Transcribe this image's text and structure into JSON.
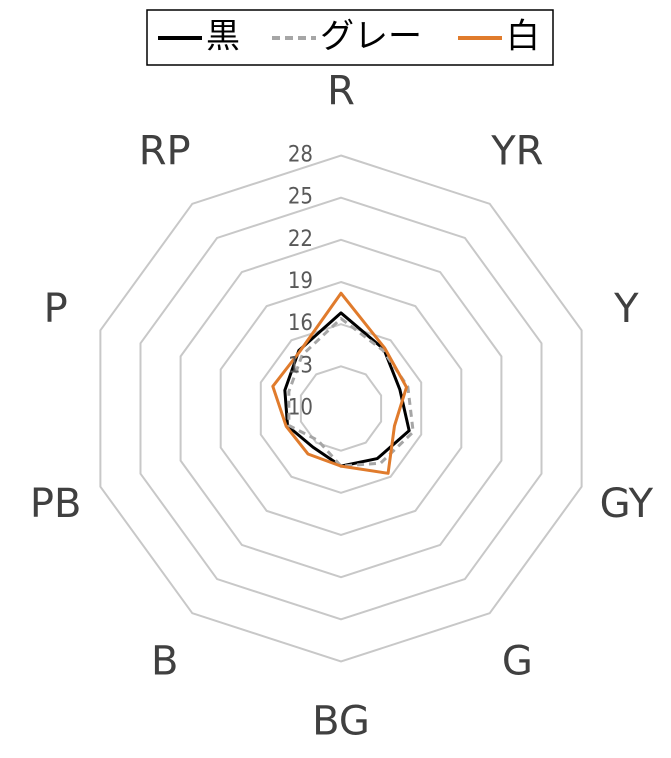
{
  "chart_data": {
    "type": "radar",
    "categories": [
      "R",
      "YR",
      "Y",
      "GY",
      "G",
      "BG",
      "B",
      "PB",
      "P",
      "RP"
    ],
    "series": [
      {
        "name": "黒",
        "color": "#000000",
        "dash": false,
        "values": [
          16.8,
          15.2,
          14.4,
          15.1,
          14.4,
          14.1,
          13.4,
          14.0,
          14.2,
          15.1
        ]
      },
      {
        "name": "グレー",
        "color": "#a6a6a6",
        "dash": true,
        "values": [
          16.4,
          15.1,
          15.0,
          15.4,
          14.8,
          14.1,
          12.8,
          13.9,
          13.9,
          14.7
        ]
      },
      {
        "name": "白",
        "color": "#e07b2c",
        "dash": false,
        "values": [
          18.2,
          15.3,
          14.9,
          14.0,
          15.7,
          14.1,
          14.0,
          14.1,
          15.1,
          15.0
        ]
      }
    ],
    "rlim": [
      10,
      28
    ],
    "rticks": [
      10,
      13,
      16,
      19,
      22,
      25,
      28
    ],
    "grid": true,
    "legend": "top"
  }
}
